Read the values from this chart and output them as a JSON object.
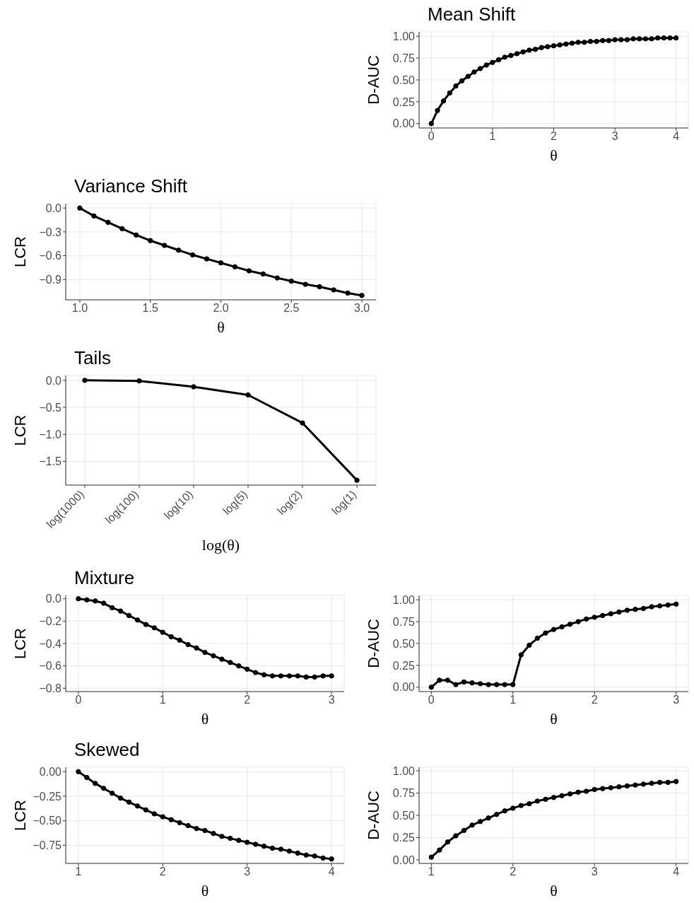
{
  "chart_data": [
    {
      "type": "line",
      "title": "Mean Shift",
      "xlabel": "θ",
      "ylabel": "D-AUC",
      "color": "#000000",
      "marker": "circle",
      "line_style": "solid",
      "grid": true,
      "x": [
        0,
        0.1,
        0.2,
        0.3,
        0.4,
        0.5,
        0.6,
        0.7,
        0.8,
        0.9,
        1,
        1.1,
        1.2,
        1.3,
        1.4,
        1.5,
        1.6,
        1.7,
        1.8,
        1.9,
        2,
        2.1,
        2.2,
        2.3,
        2.4,
        2.5,
        2.6,
        2.7,
        2.8,
        2.9,
        3,
        3.1,
        3.2,
        3.3,
        3.4,
        3.5,
        3.6,
        3.7,
        3.8,
        3.9,
        4
      ],
      "values": [
        0,
        0.15,
        0.26,
        0.35,
        0.43,
        0.49,
        0.54,
        0.59,
        0.63,
        0.67,
        0.7,
        0.73,
        0.76,
        0.78,
        0.8,
        0.82,
        0.84,
        0.85,
        0.87,
        0.88,
        0.89,
        0.9,
        0.91,
        0.92,
        0.93,
        0.93,
        0.94,
        0.94,
        0.95,
        0.95,
        0.96,
        0.96,
        0.96,
        0.97,
        0.97,
        0.97,
        0.97,
        0.98,
        0.98,
        0.98,
        0.98
      ],
      "xlim": [
        -0.2,
        4.2
      ],
      "xticks": [
        0,
        1,
        2,
        3,
        4
      ],
      "ylim": [
        -0.05,
        1.05
      ],
      "yticks": [
        {
          "value": 0,
          "label": "0.00"
        },
        {
          "value": 0.25,
          "label": "0.25"
        },
        {
          "value": 0.5,
          "label": "0.50"
        },
        {
          "value": 0.75,
          "label": "0.75"
        },
        {
          "value": 1,
          "label": "1.00"
        }
      ]
    },
    {
      "type": "line",
      "title": "Variance Shift",
      "xlabel": "θ",
      "ylabel": "LCR",
      "color": "#000000",
      "marker": "circle",
      "line_style": "solid",
      "grid": true,
      "x": [
        1,
        1.1,
        1.2,
        1.3,
        1.4,
        1.5,
        1.6,
        1.7,
        1.8,
        1.9,
        2,
        2.1,
        2.2,
        2.3,
        2.4,
        2.5,
        2.6,
        2.7,
        2.8,
        2.9,
        3
      ],
      "values": [
        0,
        -0.1,
        -0.18,
        -0.26,
        -0.34,
        -0.41,
        -0.47,
        -0.53,
        -0.59,
        -0.64,
        -0.69,
        -0.74,
        -0.79,
        -0.83,
        -0.88,
        -0.92,
        -0.96,
        -0.99,
        -1.03,
        -1.07,
        -1.1
      ],
      "xlim": [
        0.9,
        3.1
      ],
      "xticks": [
        {
          "value": 1,
          "label": "1.0"
        },
        1.5,
        {
          "value": 2,
          "label": "2.0"
        },
        2.5,
        {
          "value": 3,
          "label": "3.0"
        }
      ],
      "ylim": [
        -1.155,
        0.055
      ],
      "yticks": [
        {
          "value": 0,
          "label": "0.0"
        },
        {
          "value": -0.3,
          "label": "−0.3"
        },
        {
          "value": -0.6,
          "label": "−0.6"
        },
        {
          "value": -0.9,
          "label": "−0.9"
        }
      ]
    },
    {
      "type": "line",
      "title": "Tails",
      "xlabel": "log(θ)",
      "ylabel": "LCR",
      "color": "#000000",
      "marker": "circle",
      "line_style": "solid",
      "grid": true,
      "categories": [
        "log(1000)",
        "log(100)",
        "log(10)",
        "log(5)",
        "log(2)",
        "log(1)"
      ],
      "values": [
        0,
        -0.01,
        -0.12,
        -0.27,
        -0.79,
        -1.85
      ],
      "ylim": [
        -1.94,
        0.09
      ],
      "yticks": [
        {
          "value": 0,
          "label": "0.0"
        },
        {
          "value": -0.5,
          "label": "−0.5"
        },
        {
          "value": -1,
          "label": "−1.0"
        },
        {
          "value": -1.5,
          "label": "−1.5"
        }
      ]
    },
    {
      "type": "line",
      "title": "Mixture",
      "xlabel": "θ",
      "ylabel": "LCR",
      "color": "#000000",
      "marker": "circle",
      "line_style": "solid",
      "grid": true,
      "x": [
        0,
        0.1,
        0.2,
        0.3,
        0.4,
        0.5,
        0.6,
        0.7,
        0.8,
        0.9,
        1,
        1.1,
        1.2,
        1.3,
        1.4,
        1.5,
        1.6,
        1.7,
        1.8,
        1.9,
        2,
        2.1,
        2.2,
        2.3,
        2.4,
        2.5,
        2.6,
        2.7,
        2.8,
        2.9,
        3
      ],
      "values": [
        0,
        -0.01,
        -0.02,
        -0.04,
        -0.08,
        -0.11,
        -0.15,
        -0.19,
        -0.23,
        -0.26,
        -0.3,
        -0.34,
        -0.37,
        -0.41,
        -0.44,
        -0.48,
        -0.51,
        -0.54,
        -0.57,
        -0.6,
        -0.63,
        -0.66,
        -0.68,
        -0.69,
        -0.69,
        -0.69,
        -0.69,
        -0.7,
        -0.7,
        -0.69,
        -0.69
      ],
      "xlim": [
        -0.15,
        3.15
      ],
      "xticks": [
        0,
        1,
        2,
        3
      ],
      "ylim": [
        -0.83,
        0.03
      ],
      "yticks": [
        {
          "value": 0,
          "label": "0.0"
        },
        {
          "value": -0.2,
          "label": "−0.2"
        },
        {
          "value": -0.4,
          "label": "−0.4"
        },
        {
          "value": -0.6,
          "label": "−0.6"
        },
        {
          "value": -0.8,
          "label": "−0.8"
        }
      ]
    },
    {
      "type": "line",
      "xlabel": "θ",
      "ylabel": "D-AUC",
      "color": "#000000",
      "marker": "circle",
      "line_style": "solid",
      "grid": true,
      "x": [
        0,
        0.1,
        0.2,
        0.3,
        0.4,
        0.5,
        0.6,
        0.7,
        0.8,
        0.9,
        1,
        1.1,
        1.2,
        1.3,
        1.4,
        1.5,
        1.6,
        1.7,
        1.8,
        1.9,
        2,
        2.1,
        2.2,
        2.3,
        2.4,
        2.5,
        2.6,
        2.7,
        2.8,
        2.9,
        3
      ],
      "values": [
        0,
        0.08,
        0.08,
        0.03,
        0.06,
        0.05,
        0.04,
        0.03,
        0.03,
        0.03,
        0.03,
        0.37,
        0.48,
        0.56,
        0.62,
        0.66,
        0.69,
        0.72,
        0.75,
        0.78,
        0.8,
        0.82,
        0.84,
        0.86,
        0.88,
        0.89,
        0.9,
        0.92,
        0.93,
        0.94,
        0.95
      ],
      "xlim": [
        -0.15,
        3.15
      ],
      "xticks": [
        0,
        1,
        2,
        3
      ],
      "ylim": [
        -0.05,
        1.05
      ],
      "yticks": [
        {
          "value": 0,
          "label": "0.00"
        },
        {
          "value": 0.25,
          "label": "0.25"
        },
        {
          "value": 0.5,
          "label": "0.50"
        },
        {
          "value": 0.75,
          "label": "0.75"
        },
        {
          "value": 1,
          "label": "1.00"
        }
      ]
    },
    {
      "type": "line",
      "title": "Skewed",
      "xlabel": "θ",
      "ylabel": "LCR",
      "color": "#000000",
      "marker": "circle",
      "line_style": "solid",
      "grid": true,
      "x": [
        1,
        1.1,
        1.2,
        1.3,
        1.4,
        1.5,
        1.6,
        1.7,
        1.8,
        1.9,
        2,
        2.1,
        2.2,
        2.3,
        2.4,
        2.5,
        2.6,
        2.7,
        2.8,
        2.9,
        3,
        3.1,
        3.2,
        3.3,
        3.4,
        3.5,
        3.6,
        3.7,
        3.8,
        3.9,
        4
      ],
      "values": [
        0,
        -0.06,
        -0.12,
        -0.17,
        -0.22,
        -0.27,
        -0.31,
        -0.35,
        -0.39,
        -0.43,
        -0.46,
        -0.49,
        -0.52,
        -0.55,
        -0.58,
        -0.6,
        -0.63,
        -0.66,
        -0.68,
        -0.7,
        -0.72,
        -0.74,
        -0.76,
        -0.78,
        -0.79,
        -0.81,
        -0.83,
        -0.85,
        -0.86,
        -0.88,
        -0.89
      ],
      "xlim": [
        0.85,
        4.15
      ],
      "xticks": [
        1,
        2,
        3,
        4
      ],
      "ylim": [
        -0.935,
        0.045
      ],
      "yticks": [
        {
          "value": 0,
          "label": "0.00"
        },
        {
          "value": -0.25,
          "label": "−0.25"
        },
        {
          "value": -0.5,
          "label": "−0.50"
        },
        {
          "value": -0.75,
          "label": "−0.75"
        }
      ]
    },
    {
      "type": "line",
      "xlabel": "θ",
      "ylabel": "D-AUC",
      "color": "#000000",
      "marker": "circle",
      "line_style": "solid",
      "grid": true,
      "x": [
        1,
        1.1,
        1.2,
        1.3,
        1.4,
        1.5,
        1.6,
        1.7,
        1.8,
        1.9,
        2,
        2.1,
        2.2,
        2.3,
        2.4,
        2.5,
        2.6,
        2.7,
        2.8,
        2.9,
        3,
        3.1,
        3.2,
        3.3,
        3.4,
        3.5,
        3.6,
        3.7,
        3.8,
        3.9,
        4
      ],
      "values": [
        0.03,
        0.11,
        0.2,
        0.27,
        0.33,
        0.39,
        0.43,
        0.47,
        0.51,
        0.55,
        0.58,
        0.61,
        0.63,
        0.66,
        0.68,
        0.7,
        0.72,
        0.74,
        0.76,
        0.77,
        0.79,
        0.8,
        0.81,
        0.82,
        0.83,
        0.84,
        0.85,
        0.86,
        0.87,
        0.87,
        0.88
      ],
      "xlim": [
        0.85,
        4.15
      ],
      "xticks": [
        1,
        2,
        3,
        4
      ],
      "ylim": [
        -0.04,
        1.04
      ],
      "yticks": [
        {
          "value": 0,
          "label": "0.00"
        },
        {
          "value": 0.25,
          "label": "0.25"
        },
        {
          "value": 0.5,
          "label": "0.50"
        },
        {
          "value": 0.75,
          "label": "0.75"
        },
        {
          "value": 1,
          "label": "1.00"
        }
      ]
    }
  ]
}
